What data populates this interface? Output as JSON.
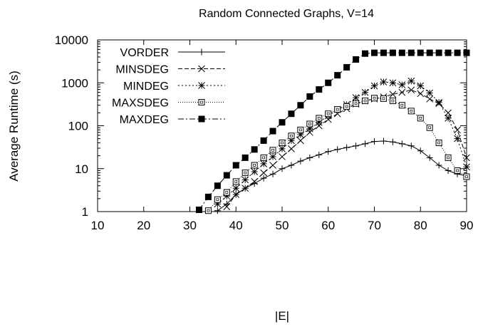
{
  "chart_data": {
    "type": "line",
    "title": "Random Connected Graphs, V=14",
    "xlabel": "|E|",
    "ylabel": "Average Runtime (s)",
    "xlim": [
      10,
      90
    ],
    "ylim": [
      1,
      10000
    ],
    "yscale": "log",
    "grid": false,
    "legend_position": "top-left",
    "xticks": [
      10,
      20,
      30,
      40,
      50,
      60,
      70,
      80,
      90
    ],
    "yticks": [
      1,
      10,
      100,
      1000,
      10000
    ],
    "xtick_labels": [
      "10",
      "20",
      "30",
      "40",
      "50",
      "60",
      "70",
      "80",
      "90"
    ],
    "ytick_labels": [
      "1",
      "10",
      "100",
      "1000",
      "10000"
    ],
    "series": [
      {
        "name": "VORDER",
        "marker": "plus",
        "dash": "",
        "x": [
          36,
          38,
          40,
          42,
          44,
          46,
          48,
          50,
          52,
          54,
          56,
          58,
          60,
          62,
          64,
          66,
          68,
          70,
          72,
          74,
          76,
          78,
          80,
          82,
          84,
          86,
          88,
          90
        ],
        "y": [
          1.05,
          1.5,
          2.5,
          3.5,
          4.5,
          6,
          7.5,
          10,
          12,
          15,
          18,
          21,
          25,
          28,
          31,
          34,
          38,
          43,
          44,
          42,
          38,
          34,
          26,
          18,
          12,
          9,
          7.5,
          6.8
        ]
      },
      {
        "name": "MINSDEG",
        "marker": "x",
        "dash": "6,3",
        "x": [
          38,
          40,
          42,
          44,
          46,
          48,
          50,
          52,
          54,
          56,
          58,
          60,
          62,
          64,
          66,
          68,
          70,
          72,
          74,
          76,
          78,
          80,
          82,
          84,
          86,
          88,
          90
        ],
        "y": [
          1.3,
          2.5,
          3.5,
          5,
          8,
          12,
          19,
          29,
          45,
          70,
          100,
          140,
          190,
          250,
          320,
          380,
          420,
          470,
          540,
          600,
          680,
          560,
          420,
          330,
          200,
          80,
          18
        ]
      },
      {
        "name": "MINDEG",
        "marker": "asterisk",
        "dash": "2,3",
        "x": [
          36,
          38,
          40,
          42,
          44,
          46,
          48,
          50,
          52,
          54,
          56,
          58,
          60,
          62,
          64,
          66,
          68,
          70,
          72,
          74,
          76,
          78,
          80,
          82,
          84,
          86,
          88,
          90
        ],
        "y": [
          1.5,
          2.3,
          3.5,
          5.5,
          8.5,
          13,
          19,
          29,
          45,
          62,
          85,
          120,
          170,
          240,
          310,
          450,
          600,
          850,
          1050,
          1000,
          900,
          1100,
          850,
          580,
          350,
          150,
          50,
          11
        ]
      },
      {
        "name": "MAXSDEG",
        "marker": "square",
        "dash": "1,2",
        "x": [
          34,
          36,
          38,
          40,
          42,
          44,
          46,
          48,
          50,
          52,
          54,
          56,
          58,
          60,
          62,
          64,
          66,
          68,
          70,
          72,
          74,
          76,
          78,
          80,
          82,
          84,
          86,
          88,
          90
        ],
        "y": [
          1.05,
          1.9,
          2.8,
          5,
          8,
          12,
          18,
          27,
          40,
          58,
          80,
          110,
          150,
          190,
          240,
          280,
          330,
          380,
          440,
          430,
          380,
          300,
          220,
          150,
          90,
          40,
          18,
          9,
          6.5
        ]
      },
      {
        "name": "MAXDEG",
        "marker": "filled-square",
        "dash": "8,3,2,3",
        "x": [
          32,
          34,
          36,
          38,
          40,
          42,
          44,
          46,
          48,
          50,
          52,
          54,
          56,
          58,
          60,
          62,
          64,
          66,
          68,
          70,
          72,
          74,
          76,
          78,
          80,
          82,
          84,
          86,
          88,
          90
        ],
        "y": [
          1.1,
          2.2,
          4,
          7,
          12,
          18,
          28,
          45,
          75,
          120,
          190,
          300,
          480,
          700,
          1000,
          1500,
          2300,
          3500,
          4800,
          5000,
          5000,
          5000,
          5000,
          5000,
          5000,
          5000,
          5000,
          5000,
          5000,
          5000
        ]
      }
    ]
  }
}
